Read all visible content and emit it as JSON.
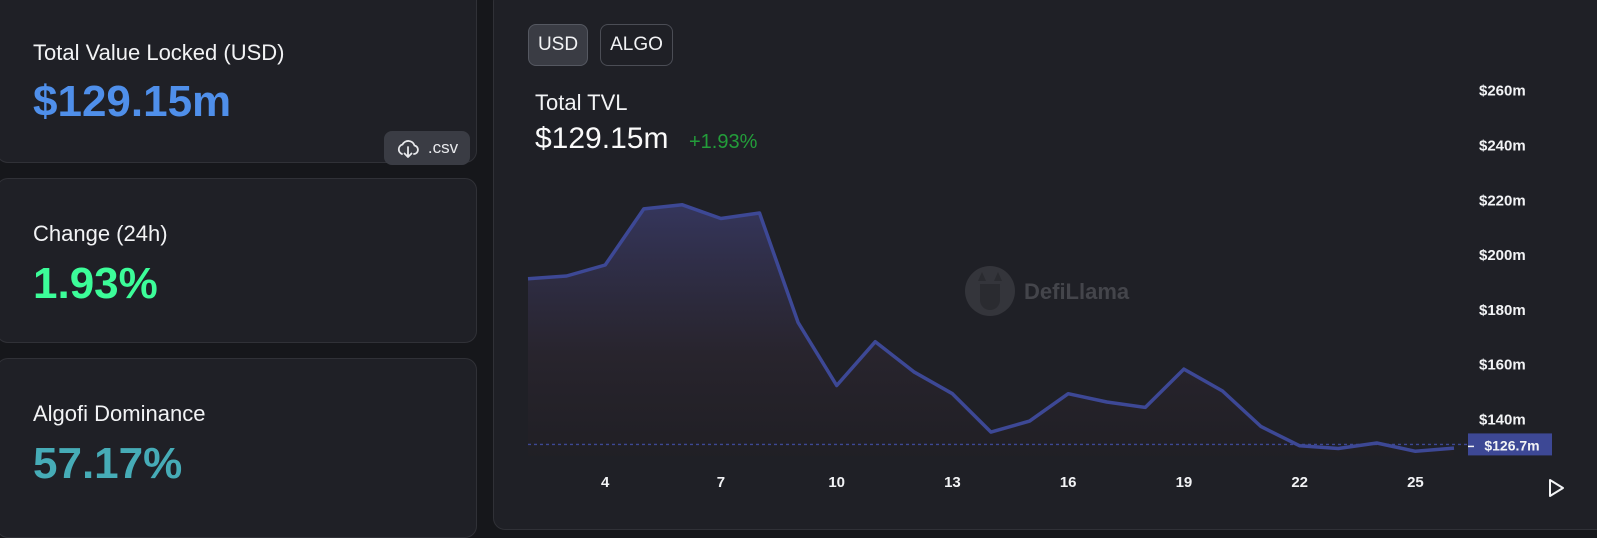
{
  "cards": {
    "tvl": {
      "label": "Total Value Locked (USD)",
      "value": "$129.15m",
      "color": "#4f8fea"
    },
    "change": {
      "label": "Change (24h)",
      "value": "1.93%",
      "color": "#3cfd99"
    },
    "dominance": {
      "label": "Algofi Dominance",
      "value": "57.17%",
      "color": "#46acb7"
    }
  },
  "csv_button": {
    "label": ".csv",
    "icon": "cloud-download-icon"
  },
  "toggles": {
    "usd": "USD",
    "algo": "ALGO"
  },
  "chart_header": {
    "title": "Total TVL",
    "amount": "$129.15m",
    "change": "+1.93%"
  },
  "watermark": {
    "text": "DefiLlama"
  },
  "chart_data": {
    "type": "area",
    "title": "",
    "xlabel": "",
    "ylabel": "",
    "x": [
      2,
      3,
      4,
      5,
      6,
      7,
      8,
      9,
      10,
      11,
      12,
      13,
      14,
      15,
      16,
      17,
      18,
      19,
      20,
      21,
      22,
      23,
      24,
      25,
      26
    ],
    "x_ticks": [
      4,
      7,
      10,
      13,
      16,
      19,
      22,
      25
    ],
    "series": [
      {
        "name": "",
        "values": [
          191,
          192,
          196,
          216.5,
          218,
          213,
          215,
          175,
          152,
          168,
          157,
          149,
          135,
          139,
          149,
          146,
          144,
          158,
          150,
          137,
          130,
          129,
          131,
          128,
          129.15
        ]
      }
    ],
    "ylim": [
      127,
      261
    ],
    "y_ticks": [
      140,
      160,
      180,
      200,
      220,
      240,
      260
    ],
    "y_tick_labels": [
      "$140m",
      "$160m",
      "$180m",
      "$200m",
      "$220m",
      "$240m",
      "$260m"
    ],
    "current_marker": {
      "value": 130.5,
      "label": "$126.7m"
    },
    "grid": false,
    "line_color": "#3d4895"
  }
}
